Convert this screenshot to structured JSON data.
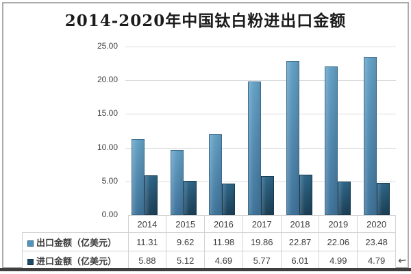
{
  "chart_data": {
    "type": "bar",
    "title": "2014-2020年中国钛白粉进出口金额",
    "categories": [
      "2014",
      "2015",
      "2016",
      "2017",
      "2018",
      "2019",
      "2020"
    ],
    "series": [
      {
        "name": "出口金额（亿美元）",
        "values": [
          11.31,
          9.62,
          11.98,
          19.86,
          22.87,
          22.06,
          23.48
        ],
        "colors": {
          "top": "#66a3c7",
          "bottom": "#41759c",
          "border": "#38688c",
          "swatch": "#4e96bd",
          "swatch_border": "#2f5e7e"
        }
      },
      {
        "name": "进口金额（亿美元）",
        "values": [
          5.88,
          5.12,
          4.69,
          5.77,
          6.01,
          4.99,
          4.79
        ],
        "colors": {
          "top": "#30688a",
          "bottom": "#1c4159",
          "border": "#173a4f",
          "swatch": "#1f4b69",
          "swatch_border": "#12334a"
        }
      }
    ],
    "xlabel": "",
    "ylabel": "",
    "ylim": [
      0,
      25
    ],
    "yticks": [
      "0.00",
      "5.00",
      "10.00",
      "15.00",
      "20.00",
      "25.00"
    ],
    "grid": true,
    "gridline_color": "#d9dcde",
    "legend_position": "data-table-left",
    "data_table_attached": true
  },
  "frame": {
    "border_color": "#ababab",
    "bottom_bar_color": "#3f3f3f"
  },
  "icons": {
    "cursor_glyph": "←"
  }
}
